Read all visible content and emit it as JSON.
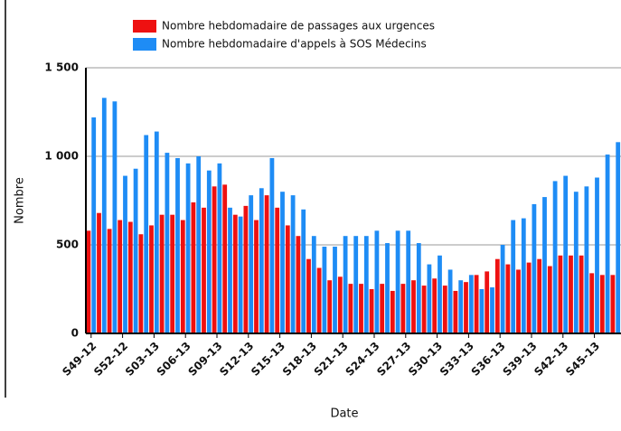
{
  "chart_data": {
    "type": "bar",
    "x_label": "Date",
    "y_label": "Nombre",
    "categories": [
      "S49-12",
      null,
      null,
      "S52-12",
      null,
      null,
      "S03-13",
      null,
      null,
      "S06-13",
      null,
      null,
      "S09-13",
      null,
      null,
      "S12-13",
      null,
      null,
      "S15-13",
      null,
      null,
      "S18-13",
      null,
      null,
      "S21-13",
      null,
      null,
      "S24-13",
      null,
      null,
      "S27-13",
      null,
      null,
      "S30-13",
      null,
      null,
      "S33-13",
      null,
      null,
      "S36-13",
      null,
      null,
      "S39-13",
      null,
      null,
      "S42-13",
      null,
      null,
      "S45-13",
      null,
      null
    ],
    "series": [
      {
        "name": "Nombre hebdomadaire de passages aux urgences",
        "color": "#ee1111",
        "values": [
          580,
          680,
          590,
          640,
          630,
          560,
          610,
          670,
          670,
          640,
          740,
          710,
          830,
          840,
          670,
          720,
          640,
          780,
          710,
          610,
          550,
          420,
          370,
          300,
          320,
          280,
          280,
          250,
          280,
          240,
          280,
          300,
          270,
          310,
          270,
          240,
          290,
          330,
          350,
          420,
          390,
          360,
          400,
          420,
          380,
          440,
          440,
          440,
          340,
          330,
          330
        ]
      },
      {
        "name": "Nombre hebdomadaire d'appels à SOS Médecins",
        "color": "#1e8cf5",
        "values": [
          1220,
          1330,
          1310,
          890,
          930,
          1120,
          1140,
          1020,
          990,
          960,
          1000,
          920,
          960,
          710,
          660,
          780,
          820,
          990,
          800,
          780,
          700,
          550,
          490,
          490,
          550,
          550,
          550,
          580,
          510,
          580,
          580,
          510,
          390,
          440,
          360,
          300,
          330,
          250,
          260,
          500,
          640,
          650,
          730,
          770,
          860,
          890,
          800,
          830,
          880,
          1010,
          1080
        ]
      }
    ],
    "ylim": [
      0,
      1500
    ],
    "yticks": [
      0,
      500,
      {
        "value": 1000,
        "label": "1 000"
      },
      {
        "value": 1500,
        "label": "1 500"
      }
    ],
    "grid": true
  }
}
